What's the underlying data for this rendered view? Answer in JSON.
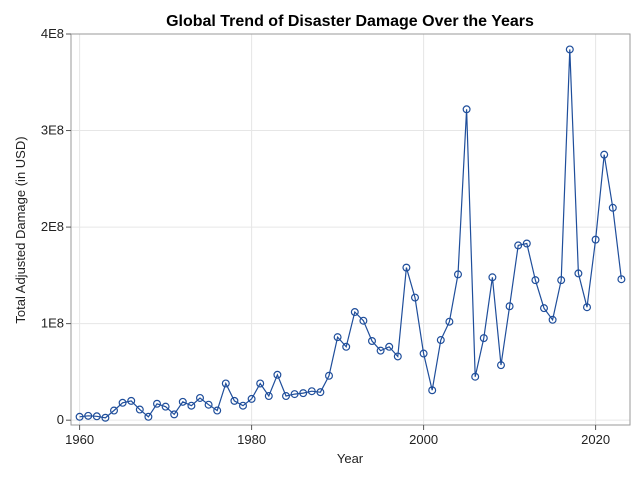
{
  "chart_data": {
    "type": "line",
    "title": "Global Trend of Disaster Damage Over the Years",
    "xlabel": "Year",
    "ylabel": "Total Adjusted Damage (in USD)",
    "xlim": [
      1959,
      2024
    ],
    "ylim": [
      -5000000,
      400000000
    ],
    "x_ticks": [
      1960,
      1980,
      2000,
      2020
    ],
    "x_tick_labels": [
      "1960",
      "1980",
      "2000",
      "2020"
    ],
    "y_ticks": [
      0,
      100000000,
      200000000,
      300000000,
      400000000
    ],
    "y_tick_labels": [
      "0",
      "1E8",
      "2E8",
      "3E8",
      "4E8"
    ],
    "grid": true,
    "markers": "open-circle",
    "series": [
      {
        "color": "#1f4e9b",
        "x": [
          1960,
          1961,
          1962,
          1963,
          1964,
          1965,
          1966,
          1967,
          1968,
          1969,
          1970,
          1971,
          1972,
          1973,
          1974,
          1975,
          1976,
          1977,
          1978,
          1979,
          1980,
          1981,
          1982,
          1983,
          1984,
          1985,
          1986,
          1987,
          1988,
          1989,
          1990,
          1991,
          1992,
          1993,
          1994,
          1995,
          1996,
          1997,
          1998,
          1999,
          2000,
          2001,
          2002,
          2003,
          2004,
          2005,
          2006,
          2007,
          2008,
          2009,
          2010,
          2011,
          2012,
          2013,
          2014,
          2015,
          2016,
          2017,
          2018,
          2019,
          2020,
          2021,
          2022,
          2023
        ],
        "y": [
          3500000,
          4500000,
          4000000,
          2500000,
          10000000,
          18000000,
          20000000,
          11000000,
          3500000,
          17000000,
          14000000,
          6000000,
          19000000,
          15000000,
          23000000,
          16000000,
          10000000,
          38000000,
          20000000,
          15000000,
          22000000,
          38000000,
          25000000,
          47000000,
          25000000,
          27000000,
          28000000,
          30000000,
          29000000,
          46000000,
          86000000,
          76000000,
          112000000,
          103000000,
          82000000,
          72000000,
          76000000,
          66000000,
          158000000,
          127000000,
          69000000,
          31000000,
          83000000,
          102000000,
          151000000,
          322000000,
          45000000,
          85000000,
          148000000,
          57000000,
          118000000,
          181000000,
          183000000,
          145000000,
          116000000,
          104000000,
          145000000,
          384000000,
          152000000,
          117000000,
          187000000,
          275000000,
          220000000,
          146000000
        ]
      }
    ]
  }
}
